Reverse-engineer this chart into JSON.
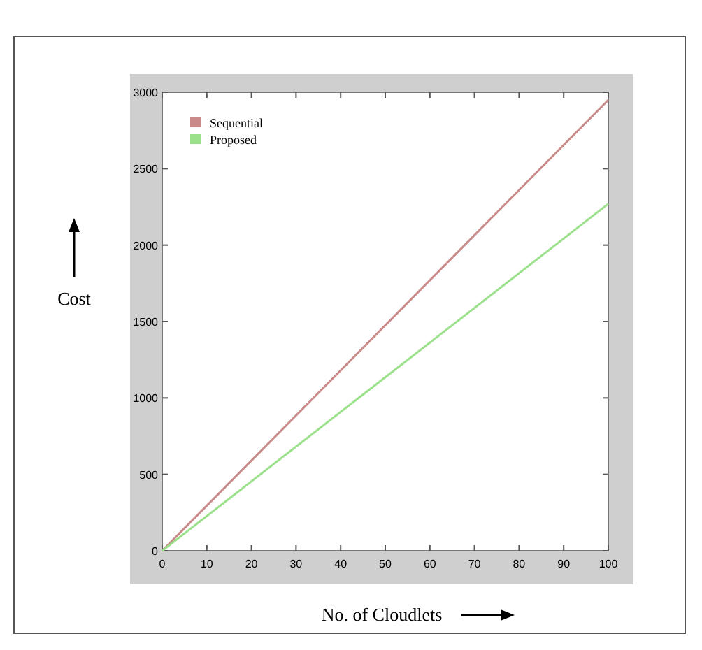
{
  "chart_data": {
    "type": "line",
    "xlabel": "No. of Cloudlets",
    "ylabel": "Cost",
    "x": [
      0,
      100
    ],
    "series": [
      {
        "name": "Sequential",
        "color": "#c98a8a",
        "values": [
          0,
          2950
        ]
      },
      {
        "name": "Proposed",
        "color": "#9be08a",
        "values": [
          0,
          2270
        ]
      }
    ],
    "xlim": [
      0,
      100
    ],
    "xticks": [
      0,
      10,
      20,
      30,
      40,
      50,
      60,
      70,
      80,
      90,
      100
    ],
    "ylim": [
      0,
      3000
    ],
    "yticks": [
      0,
      500,
      1000,
      1500,
      2000,
      2500,
      3000
    ],
    "grid": false,
    "legend": "top left",
    "marker": "none",
    "line_style": "solid"
  }
}
